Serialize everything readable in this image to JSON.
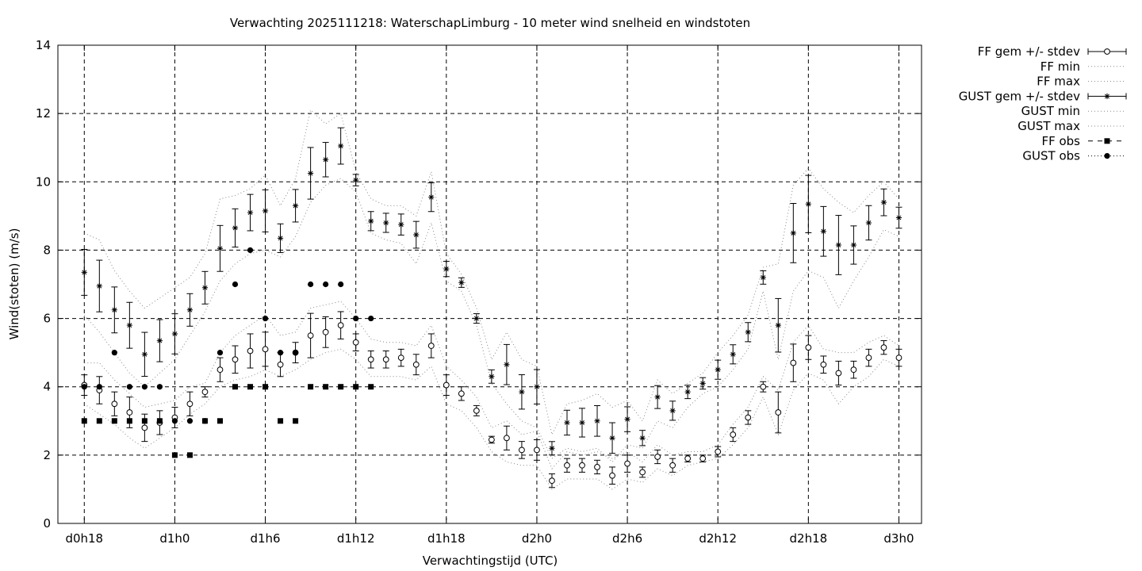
{
  "chart_data": {
    "type": "line",
    "title": "Verwachting 2025111218: WaterschapLimburg - 10 meter wind snelheid en windstoten",
    "xlabel": "Verwachtingstijd (UTC)",
    "ylabel": "Wind(stoten) (m/s)",
    "ylim": [
      0,
      14
    ],
    "yticks": [
      0,
      2,
      4,
      6,
      8,
      10,
      12,
      14
    ],
    "x_unit": "hours since d0h18 (lead time)",
    "xlim": [
      -1.75,
      55.5
    ],
    "xticks": [
      {
        "x": 0,
        "label": "d0h18"
      },
      {
        "x": 6,
        "label": "d1h0"
      },
      {
        "x": 12,
        "label": "d1h6"
      },
      {
        "x": 18,
        "label": "d1h12"
      },
      {
        "x": 24,
        "label": "d1h18"
      },
      {
        "x": 30,
        "label": "d2h0"
      },
      {
        "x": 36,
        "label": "d2h6"
      },
      {
        "x": 42,
        "label": "d2h12"
      },
      {
        "x": 48,
        "label": "d2h18"
      },
      {
        "x": 54,
        "label": "d3h0"
      }
    ],
    "grid": true,
    "legend_position": "outside-right-top",
    "x": [
      0,
      1,
      2,
      3,
      4,
      5,
      6,
      7,
      8,
      9,
      10,
      11,
      12,
      13,
      14,
      15,
      16,
      17,
      18,
      19,
      20,
      21,
      22,
      23,
      24,
      25,
      26,
      27,
      28,
      29,
      30,
      31,
      32,
      33,
      34,
      35,
      36,
      37,
      38,
      39,
      40,
      41,
      42,
      43,
      44,
      45,
      46,
      47,
      48,
      49,
      50,
      51,
      52,
      53,
      54
    ],
    "series": [
      {
        "name": "FF gem +/- stdev",
        "style": "errorbar-circle",
        "mean": [
          4.05,
          3.9,
          3.5,
          3.25,
          2.8,
          2.95,
          3.1,
          3.5,
          3.85,
          4.5,
          4.8,
          5.05,
          5.1,
          4.65,
          5.0,
          5.5,
          5.6,
          5.8,
          5.3,
          4.8,
          4.8,
          4.85,
          4.65,
          5.2,
          4.05,
          3.8,
          3.3,
          2.45,
          2.5,
          2.15,
          2.15,
          1.25,
          1.7,
          1.7,
          1.65,
          1.4,
          1.75,
          1.5,
          1.95,
          1.7,
          1.9,
          1.9,
          2.1,
          2.6,
          3.1,
          4.0,
          3.25,
          4.7,
          5.15,
          4.65,
          4.4,
          4.5,
          4.85,
          5.15,
          4.85
        ],
        "stdev": [
          0.3,
          0.4,
          0.35,
          0.45,
          0.4,
          0.35,
          0.3,
          0.35,
          0.15,
          0.35,
          0.4,
          0.5,
          0.5,
          0.35,
          0.3,
          0.65,
          0.45,
          0.4,
          0.25,
          0.25,
          0.25,
          0.25,
          0.3,
          0.35,
          0.3,
          0.2,
          0.15,
          0.1,
          0.35,
          0.25,
          0.3,
          0.2,
          0.2,
          0.2,
          0.2,
          0.25,
          0.25,
          0.15,
          0.2,
          0.2,
          0.1,
          0.1,
          0.15,
          0.2,
          0.2,
          0.15,
          0.6,
          0.55,
          0.35,
          0.25,
          0.35,
          0.25,
          0.25,
          0.2,
          0.25
        ]
      },
      {
        "name": "FF min",
        "style": "dotted",
        "values": [
          3.5,
          3.2,
          2.9,
          2.5,
          2.2,
          2.5,
          2.8,
          3.2,
          3.5,
          4.0,
          4.2,
          4.3,
          4.5,
          4.3,
          4.5,
          4.8,
          5.0,
          5.1,
          4.8,
          4.3,
          4.3,
          4.3,
          4.2,
          4.6,
          3.5,
          3.3,
          2.8,
          2.1,
          1.8,
          1.7,
          1.7,
          1.0,
          1.3,
          1.3,
          1.3,
          1.0,
          1.3,
          1.2,
          1.6,
          1.4,
          1.7,
          1.8,
          1.9,
          2.3,
          2.8,
          3.7,
          2.6,
          3.9,
          4.4,
          4.2,
          3.5,
          4.0,
          4.3,
          4.8,
          4.6
        ]
      },
      {
        "name": "FF max",
        "style": "dotted",
        "values": [
          4.7,
          4.7,
          4.2,
          3.8,
          3.4,
          3.5,
          3.6,
          4.0,
          4.1,
          5.0,
          5.5,
          5.8,
          6.1,
          5.5,
          5.6,
          6.3,
          6.4,
          6.5,
          6.0,
          5.4,
          5.3,
          5.3,
          5.2,
          5.8,
          4.6,
          4.2,
          3.7,
          2.8,
          3.0,
          2.6,
          2.7,
          1.6,
          2.1,
          2.0,
          2.1,
          1.9,
          2.1,
          1.8,
          2.3,
          2.0,
          2.1,
          2.1,
          2.3,
          2.9,
          3.4,
          4.3,
          3.9,
          5.3,
          5.8,
          5.1,
          5.0,
          5.0,
          5.3,
          5.5,
          5.2
        ]
      },
      {
        "name": "GUST gem +/- stdev",
        "style": "errorbar-star",
        "mean": [
          7.35,
          6.95,
          6.25,
          5.8,
          4.95,
          5.35,
          5.55,
          6.25,
          6.9,
          8.05,
          8.65,
          9.1,
          9.15,
          8.35,
          9.3,
          10.25,
          10.65,
          11.05,
          10.05,
          8.85,
          8.8,
          8.75,
          8.45,
          9.55,
          7.45,
          7.05,
          6.0,
          4.3,
          4.65,
          3.85,
          4.0,
          2.2,
          2.95,
          2.95,
          3.0,
          2.5,
          3.05,
          2.5,
          3.7,
          3.3,
          3.85,
          4.1,
          4.5,
          4.95,
          5.6,
          7.2,
          5.8,
          8.5,
          9.35,
          8.55,
          8.15,
          8.15,
          8.8,
          9.4,
          8.95
        ]
      },
      {
        "name": "GUST min",
        "style": "dotted",
        "values": [
          6.1,
          5.6,
          5.0,
          4.4,
          4.0,
          4.4,
          4.8,
          5.5,
          6.2,
          7.1,
          7.6,
          7.9,
          8.0,
          7.8,
          8.4,
          9.4,
          9.9,
          10.1,
          9.7,
          8.5,
          8.3,
          8.2,
          7.6,
          8.8,
          7.1,
          6.8,
          5.8,
          4.1,
          3.5,
          3.0,
          2.8,
          1.9,
          2.2,
          2.1,
          2.2,
          1.8,
          2.3,
          2.2,
          3.0,
          2.8,
          3.4,
          3.8,
          4.0,
          4.5,
          5.1,
          6.8,
          4.8,
          6.8,
          7.4,
          7.2,
          6.3,
          7.1,
          7.8,
          8.6,
          8.4
        ]
      },
      {
        "name": "GUST max",
        "style": "dotted",
        "values": [
          8.5,
          8.3,
          7.4,
          6.8,
          6.3,
          6.6,
          6.9,
          7.2,
          7.9,
          9.5,
          9.6,
          9.8,
          10.2,
          9.3,
          10.1,
          12.1,
          11.7,
          12.0,
          10.3,
          9.5,
          9.3,
          9.3,
          9.0,
          10.3,
          7.9,
          7.3,
          6.3,
          4.8,
          5.6,
          4.8,
          4.6,
          2.6,
          3.5,
          3.6,
          3.8,
          3.4,
          3.6,
          3.0,
          4.2,
          3.8,
          4.1,
          4.4,
          5.0,
          5.5,
          6.1,
          7.5,
          7.6,
          9.9,
          10.4,
          9.8,
          9.4,
          9.1,
          9.6,
          10.0,
          9.5
        ]
      },
      {
        "name": "FF obs",
        "style": "square-dashed",
        "points": [
          [
            0,
            3
          ],
          [
            1,
            3
          ],
          [
            2,
            3
          ],
          [
            3,
            3
          ],
          [
            4,
            3
          ],
          [
            5,
            3
          ],
          [
            6,
            2
          ],
          [
            7,
            2
          ],
          [
            8,
            3
          ],
          [
            9,
            3
          ],
          [
            10,
            4
          ],
          [
            11,
            4
          ],
          [
            12,
            4
          ],
          [
            13,
            3
          ],
          [
            14,
            3
          ],
          [
            15,
            4
          ],
          [
            16,
            4
          ],
          [
            17,
            4
          ],
          [
            18,
            4
          ],
          [
            19,
            4
          ]
        ]
      },
      {
        "name": "GUST obs",
        "style": "dot-dotted",
        "points": [
          [
            0,
            4
          ],
          [
            1,
            4
          ],
          [
            2,
            5
          ],
          [
            3,
            4
          ],
          [
            4,
            4
          ],
          [
            5,
            4
          ],
          [
            6,
            3
          ],
          [
            7,
            3
          ],
          [
            8,
            3
          ],
          [
            9,
            5
          ],
          [
            10,
            7
          ],
          [
            11,
            8
          ],
          [
            12,
            6
          ],
          [
            13,
            5
          ],
          [
            14,
            5
          ],
          [
            15,
            7
          ],
          [
            16,
            7
          ],
          [
            17,
            7
          ],
          [
            18,
            6
          ],
          [
            19,
            6
          ]
        ]
      }
    ]
  }
}
